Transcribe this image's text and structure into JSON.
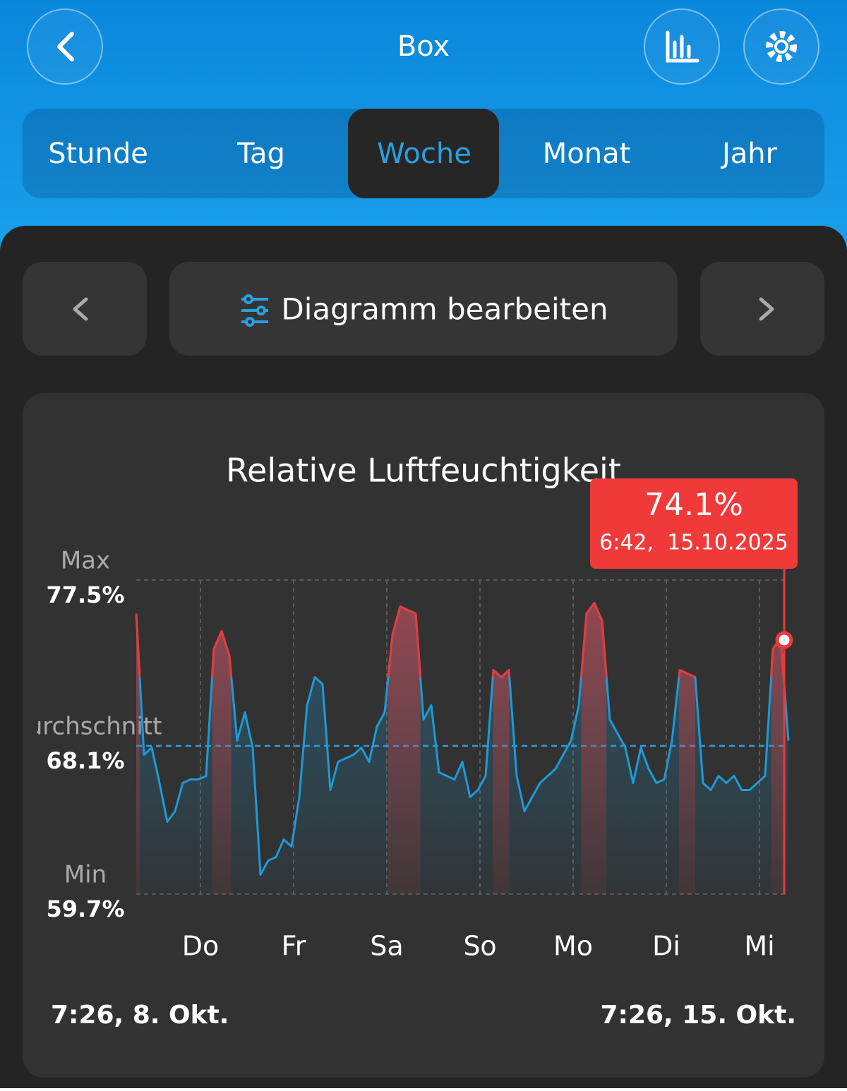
{
  "header": {
    "title": "Box"
  },
  "tabs": [
    "Stunde",
    "Tag",
    "Woche",
    "Monat",
    "Jahr"
  ],
  "active_tab": 2,
  "toolbar": {
    "edit_button": "Diagramm bearbeiten"
  },
  "chart_data": {
    "type": "line",
    "title": "Relative Luftfeuchtigkeit",
    "series": [
      {
        "color": "#1e9ad6",
        "values": [
          75.6,
          67.6,
          68.0,
          66.0,
          63.8,
          64.4,
          66.0,
          66.2,
          66.2,
          66.4,
          73.6,
          74.6,
          73.2,
          68.4,
          70.0,
          68.0,
          60.8,
          61.6,
          61.8,
          62.8,
          62.4,
          65.2,
          70.4,
          72.0,
          71.6,
          65.6,
          67.2,
          67.4,
          67.6,
          68.0,
          67.2,
          69.2,
          70.0,
          74.4,
          76.0,
          75.8,
          75.6,
          69.6,
          70.4,
          66.6,
          66.4,
          66.2,
          67.2,
          65.2,
          65.6,
          66.4,
          72.4,
          72.0,
          72.4,
          66.4,
          64.4,
          65.2,
          66.0,
          66.4,
          66.8,
          67.6,
          68.4,
          70.4,
          75.6,
          76.2,
          75.2,
          69.6,
          68.8,
          68.0,
          66.0,
          68.0,
          66.8,
          66.0,
          66.2,
          68.4,
          72.4,
          72.2,
          72.0,
          66.0,
          65.6,
          66.4,
          66.0,
          66.4,
          65.6,
          65.6,
          66.0,
          66.4,
          73.6,
          74.2,
          68.4
        ]
      }
    ],
    "highlight_above": 72,
    "highlight_color": "#e83a3a",
    "ylim": [
      59.7,
      77.5
    ],
    "yticks": [
      {
        "value": 59.7,
        "label": "59.7%"
      },
      {
        "value": 68.1,
        "label": "68.1%"
      },
      {
        "value": 77.5,
        "label": "77.5%"
      }
    ],
    "ytick_names": [
      "Min",
      "Durchschnitt",
      "Max"
    ],
    "day_labels": [
      "Do",
      "Fr",
      "Sa",
      "So",
      "Mo",
      "Di",
      "Mi"
    ],
    "tooltip": {
      "value": 74.1,
      "label": "74.1%",
      "time": "6:42,  15.10.2025"
    },
    "start_label": "7:26,  8. Okt.",
    "end_label": "7:26,  15. Okt."
  }
}
